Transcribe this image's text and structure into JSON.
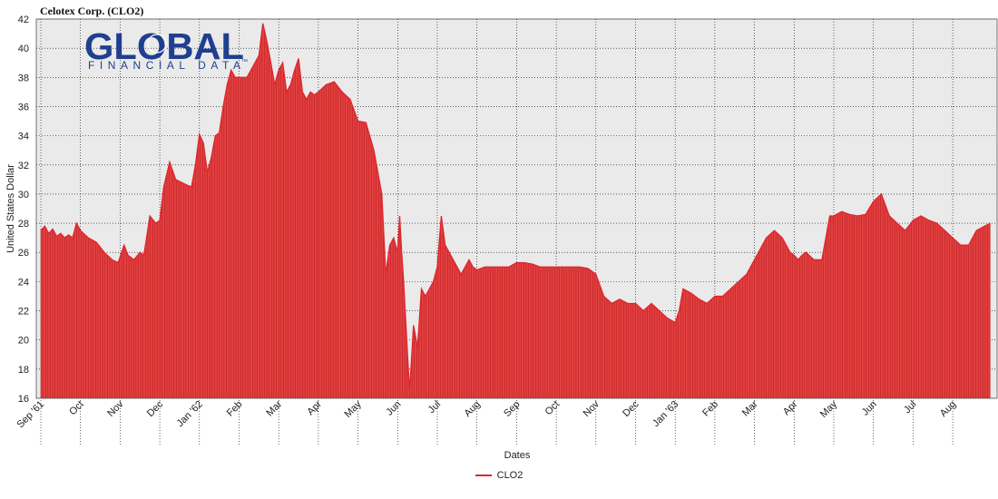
{
  "colors": {
    "series": "#e0262d",
    "fill": "#e34040",
    "grid": "#000000",
    "plot_bg": "#eaeaea"
  },
  "logo": {
    "word": "GLOBAL",
    "tagline": "FINANCIAL DATA",
    "tm": "™"
  },
  "chart_data": {
    "type": "area",
    "title": "Celotex Corp. (CLO2)",
    "xlabel": "Dates",
    "ylabel": "United States Dollar",
    "ylim": [
      16,
      42
    ],
    "yticks": [
      16,
      18,
      20,
      22,
      24,
      26,
      28,
      30,
      32,
      34,
      36,
      38,
      40,
      42
    ],
    "x_labels": [
      "Sep '61",
      "Oct",
      "Nov",
      "Dec",
      "Jan '62",
      "Feb",
      "Mar",
      "Apr",
      "May",
      "Jun",
      "Jul",
      "Aug",
      "Sep",
      "Oct",
      "Nov",
      "Dec",
      "Jan '63",
      "Feb",
      "Mar",
      "Apr",
      "May",
      "Jun",
      "Jul",
      "Aug"
    ],
    "x_label_months": [
      0,
      1,
      2,
      3,
      4,
      5,
      6,
      7,
      8,
      9,
      10,
      11,
      12,
      13,
      14,
      15,
      16,
      17,
      18,
      19,
      20,
      21,
      22,
      23
    ],
    "grid": true,
    "legend_position": "bottom-center",
    "series": [
      {
        "name": "CLO2",
        "x_months": [
          0.0,
          0.1,
          0.2,
          0.3,
          0.4,
          0.5,
          0.6,
          0.7,
          0.8,
          0.9,
          1.0,
          1.2,
          1.4,
          1.6,
          1.8,
          1.95,
          2.1,
          2.2,
          2.35,
          2.5,
          2.6,
          2.75,
          2.9,
          3.0,
          3.1,
          3.25,
          3.4,
          3.55,
          3.7,
          3.8,
          3.9,
          4.0,
          4.1,
          4.2,
          4.3,
          4.4,
          4.5,
          4.6,
          4.7,
          4.8,
          4.9,
          5.0,
          5.2,
          5.4,
          5.5,
          5.6,
          5.7,
          5.8,
          5.9,
          6.0,
          6.1,
          6.2,
          6.3,
          6.4,
          6.5,
          6.6,
          6.7,
          6.8,
          6.9,
          7.0,
          7.2,
          7.4,
          7.6,
          7.8,
          8.0,
          8.2,
          8.4,
          8.6,
          8.7,
          8.8,
          8.9,
          9.0,
          9.05,
          9.1,
          9.15,
          9.2,
          9.3,
          9.4,
          9.5,
          9.6,
          9.7,
          9.8,
          9.9,
          10.0,
          10.1,
          10.2,
          10.3,
          10.4,
          10.5,
          10.6,
          10.7,
          10.8,
          10.9,
          11.0,
          11.2,
          11.4,
          11.6,
          11.8,
          12.0,
          12.2,
          12.4,
          12.6,
          12.8,
          13.0,
          13.2,
          13.4,
          13.6,
          13.8,
          14.0,
          14.2,
          14.4,
          14.6,
          14.8,
          15.0,
          15.2,
          15.4,
          15.6,
          15.8,
          16.0,
          16.1,
          16.2,
          16.4,
          16.6,
          16.8,
          17.0,
          17.2,
          17.4,
          17.6,
          17.8,
          18.0,
          18.1,
          18.2,
          18.3,
          18.5,
          18.7,
          18.9,
          19.0,
          19.1,
          19.2,
          19.3,
          19.5,
          19.7,
          19.9,
          20.0,
          20.2,
          20.4,
          20.6,
          20.8,
          21.0,
          21.2,
          21.4,
          21.6,
          21.8,
          22.0,
          22.2,
          22.4,
          22.6,
          22.8,
          23.0,
          23.2,
          23.4,
          23.6,
          23.8,
          23.95
        ],
        "values": [
          27.5,
          27.8,
          27.3,
          27.6,
          27.1,
          27.3,
          27.0,
          27.2,
          27.0,
          28.0,
          27.5,
          27.0,
          26.7,
          26.0,
          25.5,
          25.3,
          26.5,
          25.8,
          25.5,
          26.0,
          25.8,
          28.5,
          28.0,
          28.2,
          30.5,
          32.2,
          31.0,
          30.8,
          30.6,
          30.5,
          32.0,
          34.1,
          33.5,
          31.5,
          32.5,
          34.0,
          34.2,
          36.0,
          37.5,
          38.5,
          38.0,
          38.0,
          38.0,
          39.0,
          39.5,
          41.7,
          40.5,
          39.0,
          37.5,
          38.5,
          39.0,
          37.0,
          37.5,
          38.5,
          39.3,
          37.0,
          36.5,
          37.0,
          36.8,
          37.0,
          37.5,
          37.7,
          37.0,
          36.5,
          35.0,
          34.9,
          33.0,
          30.0,
          24.5,
          26.5,
          27.0,
          26.0,
          28.5,
          26.0,
          24.0,
          21.5,
          16.5,
          21.0,
          19.5,
          23.5,
          23.0,
          23.5,
          24.0,
          25.0,
          28.5,
          26.5,
          26.0,
          25.5,
          25.0,
          24.5,
          25.0,
          25.5,
          25.0,
          24.8,
          25.0,
          25.0,
          25.0,
          25.0,
          25.3,
          25.3,
          25.2,
          25.0,
          25.0,
          25.0,
          25.0,
          25.0,
          25.0,
          24.9,
          24.5,
          23.0,
          22.5,
          22.8,
          22.5,
          22.5,
          22.0,
          22.5,
          22.0,
          21.5,
          21.2,
          22.0,
          23.5,
          23.2,
          22.8,
          22.5,
          23.0,
          23.0,
          23.5,
          24.0,
          24.5,
          25.5,
          26.0,
          26.5,
          27.0,
          27.5,
          27.0,
          26.0,
          25.8,
          25.5,
          25.8,
          26.0,
          25.5,
          25.5,
          28.5,
          28.5,
          28.8,
          28.6,
          28.5,
          28.6,
          29.5,
          30.0,
          28.5,
          28.0,
          27.5,
          28.2,
          28.5,
          28.2,
          28.0,
          27.5,
          27.0,
          26.5,
          26.5,
          27.5,
          27.8,
          28.0
        ]
      }
    ]
  },
  "legend": {
    "label": "CLO2"
  }
}
